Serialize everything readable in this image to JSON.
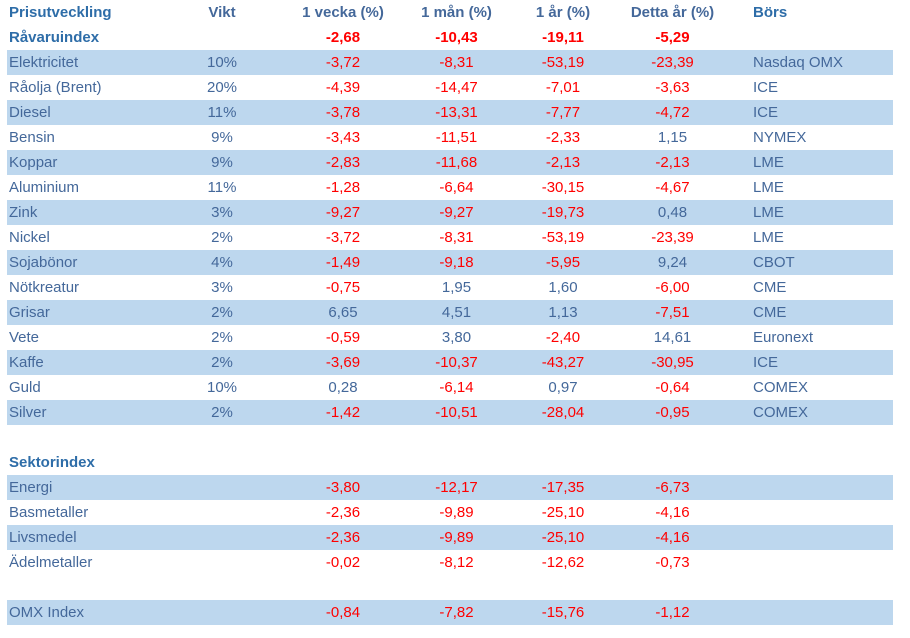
{
  "table": {
    "headers": {
      "name": "Prisutveckling",
      "vikt": "Vikt",
      "w1": "1 vecka (%)",
      "m1": "1 mån (%)",
      "y1": "1 år (%)",
      "ytd": "Detta år (%)",
      "bors": "Börs"
    },
    "index_row": {
      "name": "Råvaruindex",
      "vikt": "",
      "w1": "-2,68",
      "m1": "-10,43",
      "y1": "-19,11",
      "ytd": "-5,29",
      "bors": ""
    },
    "commodities": [
      {
        "name": "Elektricitet",
        "vikt": "10%",
        "w1": "-3,72",
        "m1": "-8,31",
        "y1": "-53,19",
        "ytd": "-23,39",
        "bors": "Nasdaq OMX"
      },
      {
        "name": "Råolja (Brent)",
        "vikt": "20%",
        "w1": "-4,39",
        "m1": "-14,47",
        "y1": "-7,01",
        "ytd": "-3,63",
        "bors": "ICE"
      },
      {
        "name": "Diesel",
        "vikt": "11%",
        "w1": "-3,78",
        "m1": "-13,31",
        "y1": "-7,77",
        "ytd": "-4,72",
        "bors": "ICE"
      },
      {
        "name": "Bensin",
        "vikt": "9%",
        "w1": "-3,43",
        "m1": "-11,51",
        "y1": "-2,33",
        "ytd": "1,15",
        "bors": "NYMEX"
      },
      {
        "name": "Koppar",
        "vikt": "9%",
        "w1": "-2,83",
        "m1": "-11,68",
        "y1": "-2,13",
        "ytd": "-2,13",
        "bors": "LME"
      },
      {
        "name": "Aluminium",
        "vikt": "11%",
        "w1": "-1,28",
        "m1": "-6,64",
        "y1": "-30,15",
        "ytd": "-4,67",
        "bors": "LME"
      },
      {
        "name": "Zink",
        "vikt": "3%",
        "w1": "-9,27",
        "m1": "-9,27",
        "y1": "-19,73",
        "ytd": "0,48",
        "bors": "LME"
      },
      {
        "name": "Nickel",
        "vikt": "2%",
        "w1": "-3,72",
        "m1": "-8,31",
        "y1": "-53,19",
        "ytd": "-23,39",
        "bors": "LME"
      },
      {
        "name": "Sojabönor",
        "vikt": "4%",
        "w1": "-1,49",
        "m1": "-9,18",
        "y1": "-5,95",
        "ytd": "9,24",
        "bors": "CBOT"
      },
      {
        "name": "Nötkreatur",
        "vikt": "3%",
        "w1": "-0,75",
        "m1": "1,95",
        "y1": "1,60",
        "ytd": "-6,00",
        "bors": "CME"
      },
      {
        "name": "Grisar",
        "vikt": "2%",
        "w1": "6,65",
        "m1": "4,51",
        "y1": "1,13",
        "ytd": "-7,51",
        "bors": "CME"
      },
      {
        "name": "Vete",
        "vikt": "2%",
        "w1": "-0,59",
        "m1": "3,80",
        "y1": "-2,40",
        "ytd": "14,61",
        "bors": "Euronext"
      },
      {
        "name": "Kaffe",
        "vikt": "2%",
        "w1": "-3,69",
        "m1": "-10,37",
        "y1": "-43,27",
        "ytd": "-30,95",
        "bors": "ICE"
      },
      {
        "name": "Guld",
        "vikt": "10%",
        "w1": "0,28",
        "m1": "-6,14",
        "y1": "0,97",
        "ytd": "-0,64",
        "bors": "COMEX"
      },
      {
        "name": "Silver",
        "vikt": "2%",
        "w1": "-1,42",
        "m1": "-10,51",
        "y1": "-28,04",
        "ytd": "-0,95",
        "bors": "COMEX"
      }
    ],
    "sector_title": "Sektorindex",
    "sectors": [
      {
        "name": "Energi",
        "w1": "-3,80",
        "m1": "-12,17",
        "y1": "-17,35",
        "ytd": "-6,73"
      },
      {
        "name": "Basmetaller",
        "w1": "-2,36",
        "m1": "-9,89",
        "y1": "-25,10",
        "ytd": "-4,16"
      },
      {
        "name": "Livsmedel",
        "w1": "-2,36",
        "m1": "-9,89",
        "y1": "-25,10",
        "ytd": "-4,16"
      },
      {
        "name": "Ädelmetaller",
        "w1": "-0,02",
        "m1": "-8,12",
        "y1": "-12,62",
        "ytd": "-0,73"
      }
    ],
    "omx": {
      "name": "OMX Index",
      "w1": "-0,84",
      "m1": "-7,82",
      "y1": "-15,76",
      "ytd": "-1,12"
    }
  },
  "colors": {
    "shaded_row": "#BDD7EE",
    "header_blue": "#2E6DA8",
    "label_blue": "#44689A",
    "negative_red": "#FF0000"
  }
}
